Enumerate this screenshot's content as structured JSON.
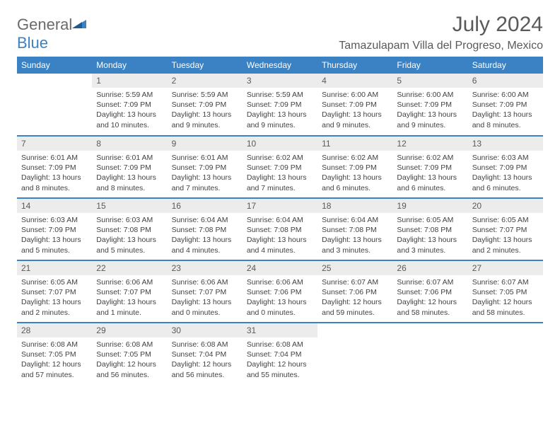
{
  "brand": {
    "part1": "General",
    "part2": "Blue"
  },
  "title": "July 2024",
  "location": "Tamazulapam Villa del Progreso, Mexico",
  "colors": {
    "header_bg": "#3a82c4",
    "header_text": "#ffffff",
    "daynum_bg": "#ececec",
    "text": "#424242",
    "rule": "#3a82c4",
    "logo_gray": "#6a6a6a",
    "logo_blue": "#3a82c4"
  },
  "days_of_week": [
    "Sunday",
    "Monday",
    "Tuesday",
    "Wednesday",
    "Thursday",
    "Friday",
    "Saturday"
  ],
  "weeks": [
    [
      {
        "n": "",
        "sr": "",
        "ss": "",
        "dl": ""
      },
      {
        "n": "1",
        "sr": "Sunrise: 5:59 AM",
        "ss": "Sunset: 7:09 PM",
        "dl": "Daylight: 13 hours and 10 minutes."
      },
      {
        "n": "2",
        "sr": "Sunrise: 5:59 AM",
        "ss": "Sunset: 7:09 PM",
        "dl": "Daylight: 13 hours and 9 minutes."
      },
      {
        "n": "3",
        "sr": "Sunrise: 5:59 AM",
        "ss": "Sunset: 7:09 PM",
        "dl": "Daylight: 13 hours and 9 minutes."
      },
      {
        "n": "4",
        "sr": "Sunrise: 6:00 AM",
        "ss": "Sunset: 7:09 PM",
        "dl": "Daylight: 13 hours and 9 minutes."
      },
      {
        "n": "5",
        "sr": "Sunrise: 6:00 AM",
        "ss": "Sunset: 7:09 PM",
        "dl": "Daylight: 13 hours and 9 minutes."
      },
      {
        "n": "6",
        "sr": "Sunrise: 6:00 AM",
        "ss": "Sunset: 7:09 PM",
        "dl": "Daylight: 13 hours and 8 minutes."
      }
    ],
    [
      {
        "n": "7",
        "sr": "Sunrise: 6:01 AM",
        "ss": "Sunset: 7:09 PM",
        "dl": "Daylight: 13 hours and 8 minutes."
      },
      {
        "n": "8",
        "sr": "Sunrise: 6:01 AM",
        "ss": "Sunset: 7:09 PM",
        "dl": "Daylight: 13 hours and 8 minutes."
      },
      {
        "n": "9",
        "sr": "Sunrise: 6:01 AM",
        "ss": "Sunset: 7:09 PM",
        "dl": "Daylight: 13 hours and 7 minutes."
      },
      {
        "n": "10",
        "sr": "Sunrise: 6:02 AM",
        "ss": "Sunset: 7:09 PM",
        "dl": "Daylight: 13 hours and 7 minutes."
      },
      {
        "n": "11",
        "sr": "Sunrise: 6:02 AM",
        "ss": "Sunset: 7:09 PM",
        "dl": "Daylight: 13 hours and 6 minutes."
      },
      {
        "n": "12",
        "sr": "Sunrise: 6:02 AM",
        "ss": "Sunset: 7:09 PM",
        "dl": "Daylight: 13 hours and 6 minutes."
      },
      {
        "n": "13",
        "sr": "Sunrise: 6:03 AM",
        "ss": "Sunset: 7:09 PM",
        "dl": "Daylight: 13 hours and 6 minutes."
      }
    ],
    [
      {
        "n": "14",
        "sr": "Sunrise: 6:03 AM",
        "ss": "Sunset: 7:09 PM",
        "dl": "Daylight: 13 hours and 5 minutes."
      },
      {
        "n": "15",
        "sr": "Sunrise: 6:03 AM",
        "ss": "Sunset: 7:08 PM",
        "dl": "Daylight: 13 hours and 5 minutes."
      },
      {
        "n": "16",
        "sr": "Sunrise: 6:04 AM",
        "ss": "Sunset: 7:08 PM",
        "dl": "Daylight: 13 hours and 4 minutes."
      },
      {
        "n": "17",
        "sr": "Sunrise: 6:04 AM",
        "ss": "Sunset: 7:08 PM",
        "dl": "Daylight: 13 hours and 4 minutes."
      },
      {
        "n": "18",
        "sr": "Sunrise: 6:04 AM",
        "ss": "Sunset: 7:08 PM",
        "dl": "Daylight: 13 hours and 3 minutes."
      },
      {
        "n": "19",
        "sr": "Sunrise: 6:05 AM",
        "ss": "Sunset: 7:08 PM",
        "dl": "Daylight: 13 hours and 3 minutes."
      },
      {
        "n": "20",
        "sr": "Sunrise: 6:05 AM",
        "ss": "Sunset: 7:07 PM",
        "dl": "Daylight: 13 hours and 2 minutes."
      }
    ],
    [
      {
        "n": "21",
        "sr": "Sunrise: 6:05 AM",
        "ss": "Sunset: 7:07 PM",
        "dl": "Daylight: 13 hours and 2 minutes."
      },
      {
        "n": "22",
        "sr": "Sunrise: 6:06 AM",
        "ss": "Sunset: 7:07 PM",
        "dl": "Daylight: 13 hours and 1 minute."
      },
      {
        "n": "23",
        "sr": "Sunrise: 6:06 AM",
        "ss": "Sunset: 7:07 PM",
        "dl": "Daylight: 13 hours and 0 minutes."
      },
      {
        "n": "24",
        "sr": "Sunrise: 6:06 AM",
        "ss": "Sunset: 7:06 PM",
        "dl": "Daylight: 13 hours and 0 minutes."
      },
      {
        "n": "25",
        "sr": "Sunrise: 6:07 AM",
        "ss": "Sunset: 7:06 PM",
        "dl": "Daylight: 12 hours and 59 minutes."
      },
      {
        "n": "26",
        "sr": "Sunrise: 6:07 AM",
        "ss": "Sunset: 7:06 PM",
        "dl": "Daylight: 12 hours and 58 minutes."
      },
      {
        "n": "27",
        "sr": "Sunrise: 6:07 AM",
        "ss": "Sunset: 7:05 PM",
        "dl": "Daylight: 12 hours and 58 minutes."
      }
    ],
    [
      {
        "n": "28",
        "sr": "Sunrise: 6:08 AM",
        "ss": "Sunset: 7:05 PM",
        "dl": "Daylight: 12 hours and 57 minutes."
      },
      {
        "n": "29",
        "sr": "Sunrise: 6:08 AM",
        "ss": "Sunset: 7:05 PM",
        "dl": "Daylight: 12 hours and 56 minutes."
      },
      {
        "n": "30",
        "sr": "Sunrise: 6:08 AM",
        "ss": "Sunset: 7:04 PM",
        "dl": "Daylight: 12 hours and 56 minutes."
      },
      {
        "n": "31",
        "sr": "Sunrise: 6:08 AM",
        "ss": "Sunset: 7:04 PM",
        "dl": "Daylight: 12 hours and 55 minutes."
      },
      {
        "n": "",
        "sr": "",
        "ss": "",
        "dl": ""
      },
      {
        "n": "",
        "sr": "",
        "ss": "",
        "dl": ""
      },
      {
        "n": "",
        "sr": "",
        "ss": "",
        "dl": ""
      }
    ]
  ]
}
